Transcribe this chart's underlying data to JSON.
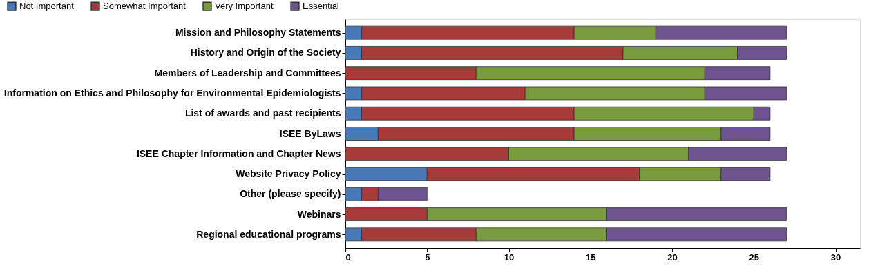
{
  "chart_data": {
    "type": "bar",
    "orientation": "horizontal",
    "stacked": true,
    "categories": [
      "Mission and Philosophy Statements",
      "History and Origin of the Society",
      "Members of Leadership and Committees",
      "Information on Ethics and Philosophy for Environmental Epidemiologists",
      "List of awards and past recipients",
      "ISEE ByLaws",
      "ISEE Chapter Information and Chapter News",
      "Website Privacy Policy",
      "Other (please specify)",
      "Webinars",
      "Regional educational programs"
    ],
    "series": [
      {
        "name": "Not Important",
        "color": "#4a7ab5",
        "values": [
          1,
          1,
          0,
          1,
          1,
          2,
          0,
          5,
          1,
          0,
          1
        ]
      },
      {
        "name": "Somewhat Important",
        "color": "#a83a3a",
        "values": [
          13,
          16,
          8,
          10,
          13,
          12,
          10,
          13,
          1,
          5,
          7
        ]
      },
      {
        "name": "Very Important",
        "color": "#7a9a3e",
        "values": [
          5,
          7,
          14,
          11,
          11,
          9,
          11,
          5,
          0,
          11,
          8
        ]
      },
      {
        "name": "Essential",
        "color": "#6e548e",
        "values": [
          8,
          3,
          4,
          5,
          1,
          3,
          6,
          3,
          3,
          11,
          11
        ]
      }
    ],
    "xlim": [
      0,
      31.5
    ],
    "xticks": [
      0,
      5,
      10,
      15,
      20,
      25,
      30
    ],
    "grid": false,
    "legend": "top"
  }
}
